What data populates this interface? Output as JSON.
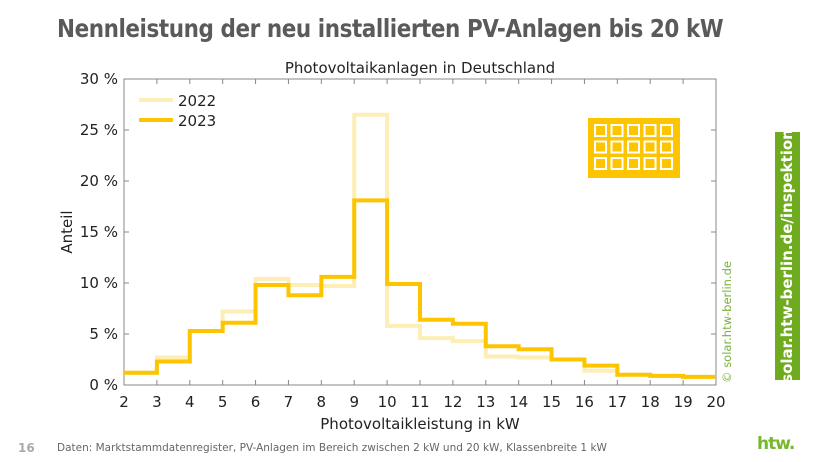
{
  "page": {
    "title": "Nennleistung der neu installierten PV-Anlagen bis 20 kW",
    "page_number": "16",
    "footer": "Daten: Marktstammdatenregister, PV-Anlagen im Bereich zwischen 2 kW und 20 kW, Klassenbreite 1 kW",
    "side_banner": "solar.htw-berlin.de/inspektion",
    "copyright": "© solar.htw-berlin.de",
    "logo": "htw."
  },
  "colors": {
    "2022": "#fdeeb5",
    "2023": "#fcc500",
    "accent_green": "#6fab1e"
  },
  "chart_data": {
    "type": "step",
    "title": "Photovoltaikanlagen in Deutschland",
    "xlabel": "Photovoltaikleistung in kW",
    "ylabel": "Anteil",
    "xlim": [
      2,
      20
    ],
    "ylim": [
      0,
      30
    ],
    "x_ticks": [
      "2",
      "3",
      "4",
      "5",
      "6",
      "7",
      "8",
      "9",
      "10",
      "11",
      "12",
      "13",
      "14",
      "15",
      "16",
      "17",
      "18",
      "19",
      "20"
    ],
    "y_ticks": [
      "0 %",
      "5 %",
      "10 %",
      "15 %",
      "20 %",
      "25 %",
      "30 %"
    ],
    "bin_edges": [
      2,
      3,
      4,
      5,
      6,
      7,
      8,
      9,
      10,
      11,
      12,
      13,
      14,
      15,
      16,
      17,
      18,
      19,
      20
    ],
    "legend_position": "top-left",
    "grid": false,
    "icon": "solar-panel-icon",
    "series": [
      {
        "name": "2022",
        "values": [
          1.2,
          2.7,
          5.3,
          7.2,
          10.4,
          9.8,
          9.7,
          26.5,
          5.8,
          4.6,
          4.3,
          2.8,
          2.7,
          2.5,
          1.4,
          1.0,
          0.9,
          0.8
        ]
      },
      {
        "name": "2023",
        "values": [
          1.2,
          2.3,
          5.3,
          6.1,
          9.8,
          8.8,
          10.6,
          18.1,
          9.9,
          6.4,
          6.0,
          3.8,
          3.5,
          2.5,
          1.9,
          1.0,
          0.9,
          0.8
        ]
      }
    ]
  }
}
